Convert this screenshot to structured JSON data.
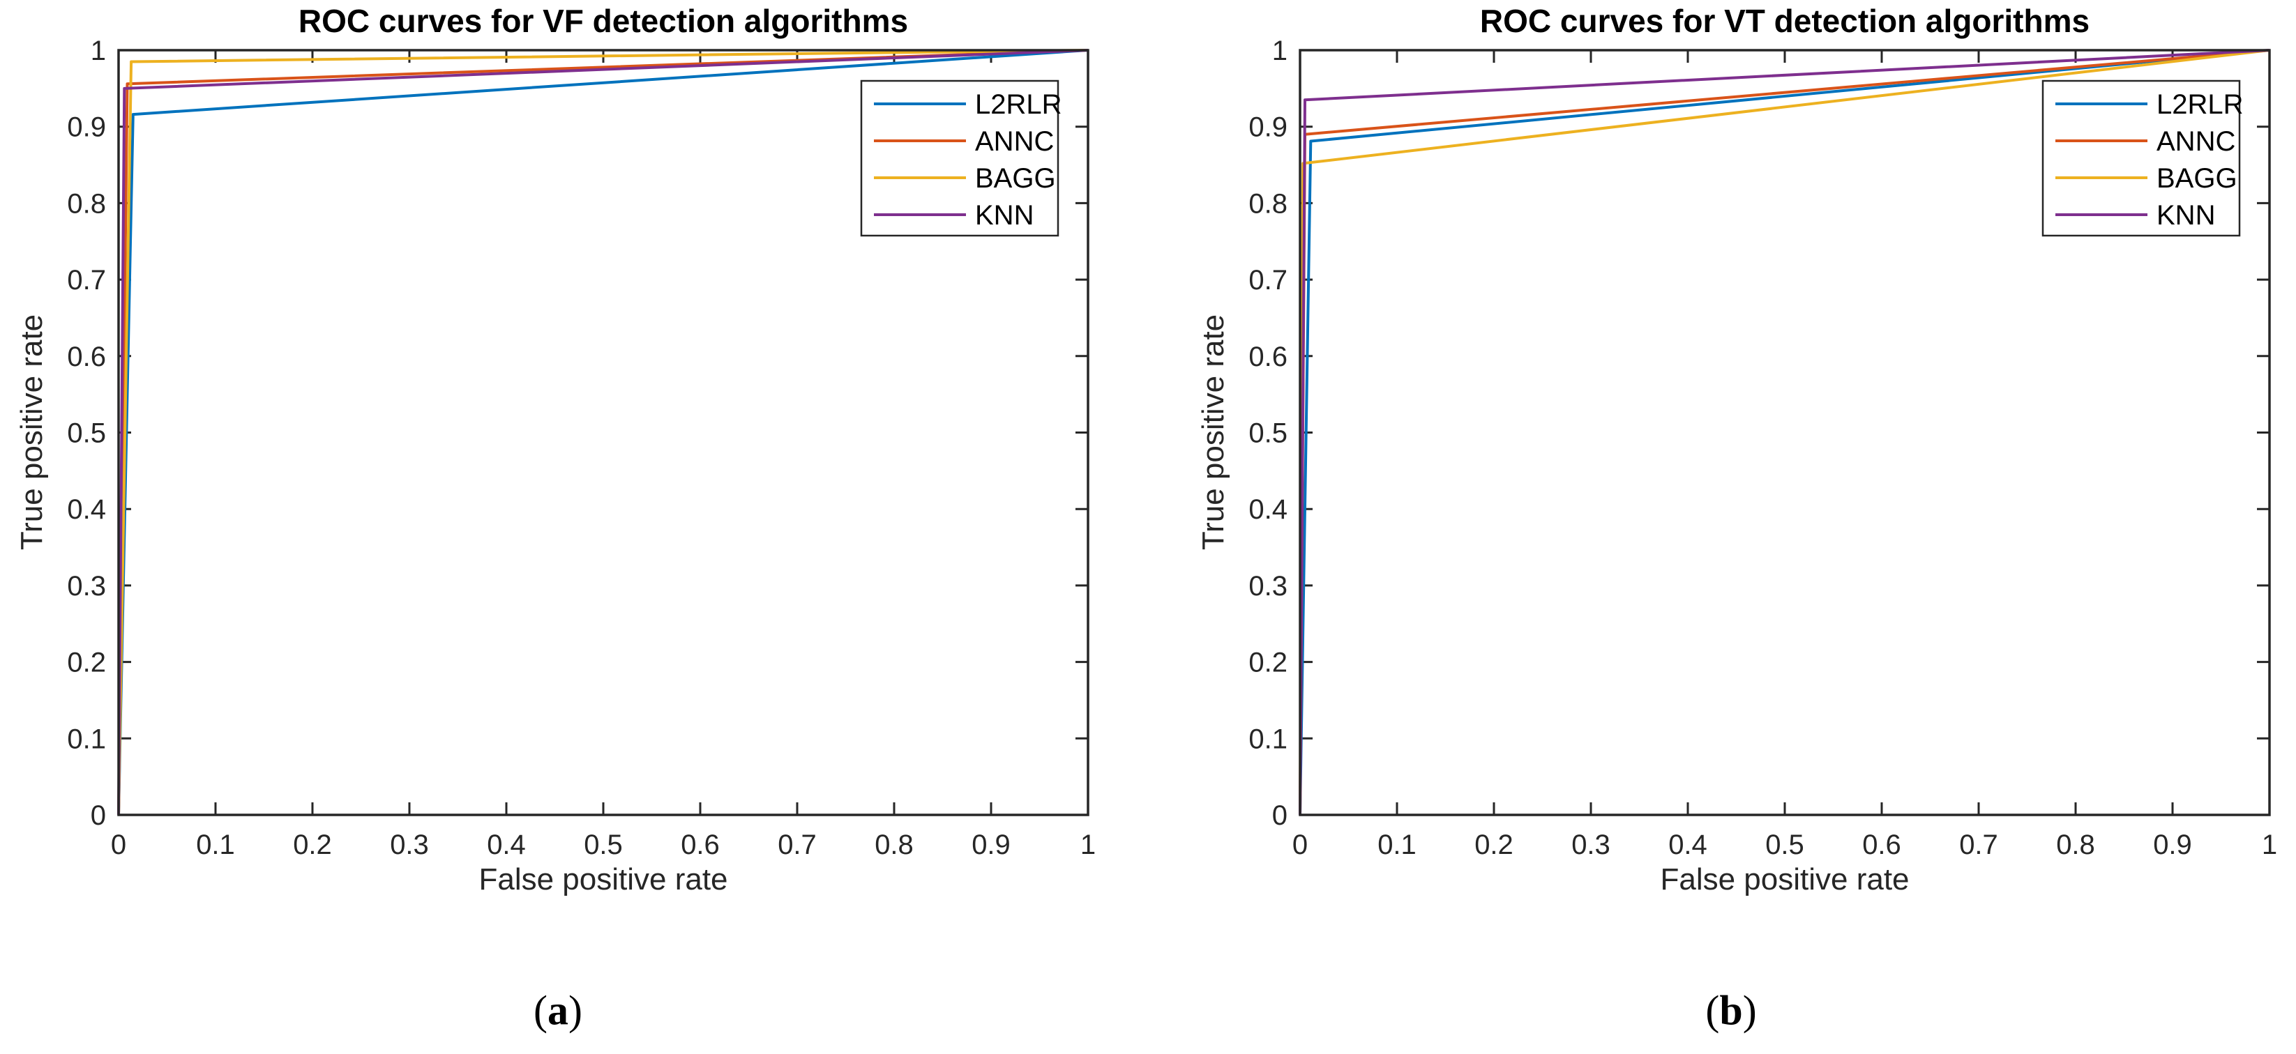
{
  "figure": {
    "background": "#ffffff",
    "axis_color": "#262626",
    "tick_label_color": "#262626",
    "title_color": "#000000"
  },
  "chart_data": [
    {
      "type": "line",
      "title": "ROC curves for VF detection algorithms",
      "xlabel": "False positive rate",
      "ylabel": "True positive rate",
      "caption_open": "(",
      "caption_letter": "a",
      "caption_close": ")",
      "xlim": [
        0,
        1
      ],
      "ylim": [
        0,
        1
      ],
      "xticks": [
        "0",
        "0.1",
        "0.2",
        "0.3",
        "0.4",
        "0.5",
        "0.6",
        "0.7",
        "0.8",
        "0.9",
        "1"
      ],
      "yticks": [
        "0",
        "0.1",
        "0.2",
        "0.3",
        "0.4",
        "0.5",
        "0.6",
        "0.7",
        "0.8",
        "0.9",
        "1"
      ],
      "grid": false,
      "legend_position": "northeast",
      "legend_entries": [
        "L2RLR",
        "ANNC",
        "BAGG",
        "KNN"
      ],
      "series": [
        {
          "name": "L2RLR",
          "color": "#0072BD",
          "points": [
            [
              0,
              0
            ],
            [
              0.015,
              0.916
            ],
            [
              1,
              1
            ]
          ]
        },
        {
          "name": "ANNC",
          "color": "#D95319",
          "points": [
            [
              0,
              0
            ],
            [
              0.009,
              0.956
            ],
            [
              1,
              1
            ]
          ]
        },
        {
          "name": "BAGG",
          "color": "#EDB120",
          "points": [
            [
              0,
              0
            ],
            [
              0.013,
              0.985
            ],
            [
              1,
              1
            ]
          ]
        },
        {
          "name": "KNN",
          "color": "#7E2F8E",
          "points": [
            [
              0,
              0
            ],
            [
              0.006,
              0.95
            ],
            [
              1,
              1
            ]
          ]
        }
      ]
    },
    {
      "type": "line",
      "title": "ROC curves for VT detection algorithms",
      "xlabel": "False positive rate",
      "ylabel": "True positive rate",
      "caption_open": "(",
      "caption_letter": "b",
      "caption_close": ")",
      "xlim": [
        0,
        1
      ],
      "ylim": [
        0,
        1
      ],
      "xticks": [
        "0",
        "0.1",
        "0.2",
        "0.3",
        "0.4",
        "0.5",
        "0.6",
        "0.7",
        "0.8",
        "0.9",
        "1"
      ],
      "yticks": [
        "0",
        "0.1",
        "0.2",
        "0.3",
        "0.4",
        "0.5",
        "0.6",
        "0.7",
        "0.8",
        "0.9",
        "1"
      ],
      "grid": false,
      "legend_position": "northeast",
      "legend_entries": [
        "L2RLR",
        "ANNC",
        "BAGG",
        "KNN"
      ],
      "series": [
        {
          "name": "L2RLR",
          "color": "#0072BD",
          "points": [
            [
              0,
              0
            ],
            [
              0.011,
              0.881
            ],
            [
              1,
              1
            ]
          ]
        },
        {
          "name": "ANNC",
          "color": "#D95319",
          "points": [
            [
              0,
              0
            ],
            [
              0.005,
              0.89
            ],
            [
              1,
              1
            ]
          ]
        },
        {
          "name": "BAGG",
          "color": "#EDB120",
          "points": [
            [
              0,
              0
            ],
            [
              0.003,
              0.852
            ],
            [
              1,
              1
            ]
          ]
        },
        {
          "name": "KNN",
          "color": "#7E2F8E",
          "points": [
            [
              0,
              0
            ],
            [
              0.005,
              0.935
            ],
            [
              1,
              1
            ]
          ]
        }
      ]
    }
  ]
}
